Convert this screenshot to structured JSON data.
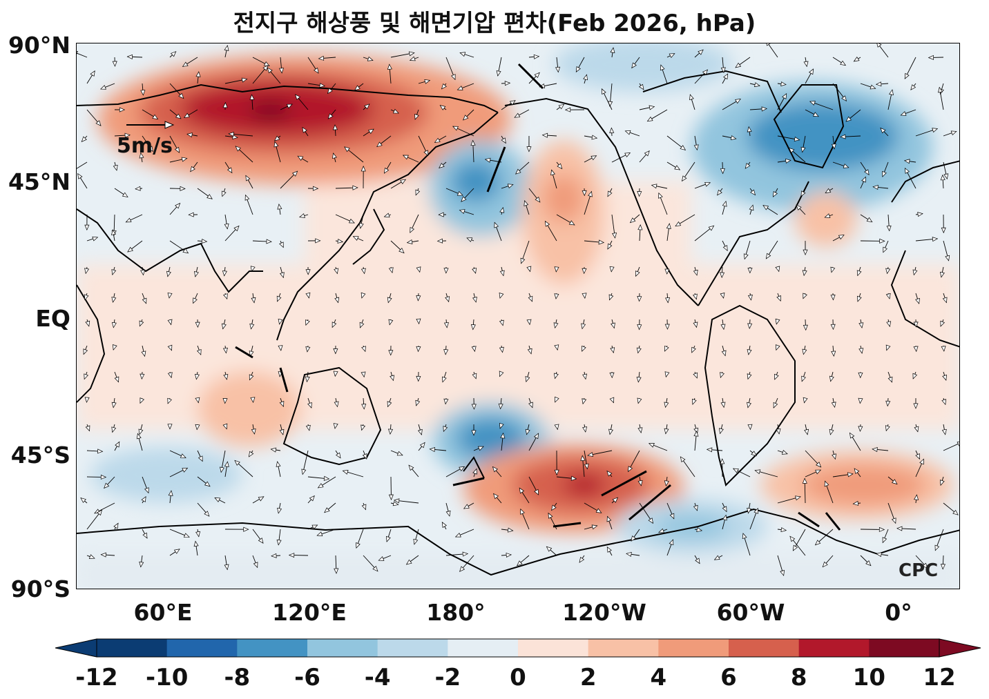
{
  "title": "전지구 해상풍 및 해면기압 편차(Feb 2026, hPa)",
  "y_ticks": [
    "90°N",
    "45°N",
    "EQ",
    "45°S",
    "90°S"
  ],
  "x_ticks": [
    "60°E",
    "120°E",
    "180°",
    "120°W",
    "60°W",
    "0°"
  ],
  "colorbar": {
    "ticks": [
      "-12",
      "-10",
      "-8",
      "-6",
      "-4",
      "-2",
      "0",
      "2",
      "4",
      "6",
      "8",
      "10",
      "12"
    ],
    "colors": [
      "#0b3c73",
      "#2166ac",
      "#4393c3",
      "#92c5de",
      "#bcd9ea",
      "#e5eef4",
      "#fbe3d8",
      "#f8c1a6",
      "#f09b7a",
      "#d6604d",
      "#b2182b",
      "#7d0a22"
    ]
  },
  "reference_vector": {
    "label": "5m/s"
  },
  "logo": "CPC",
  "map": {
    "land_outline_color": "#000000",
    "anomaly_positive_color": "#d6604d",
    "anomaly_negative_color": "#4393c3"
  }
}
